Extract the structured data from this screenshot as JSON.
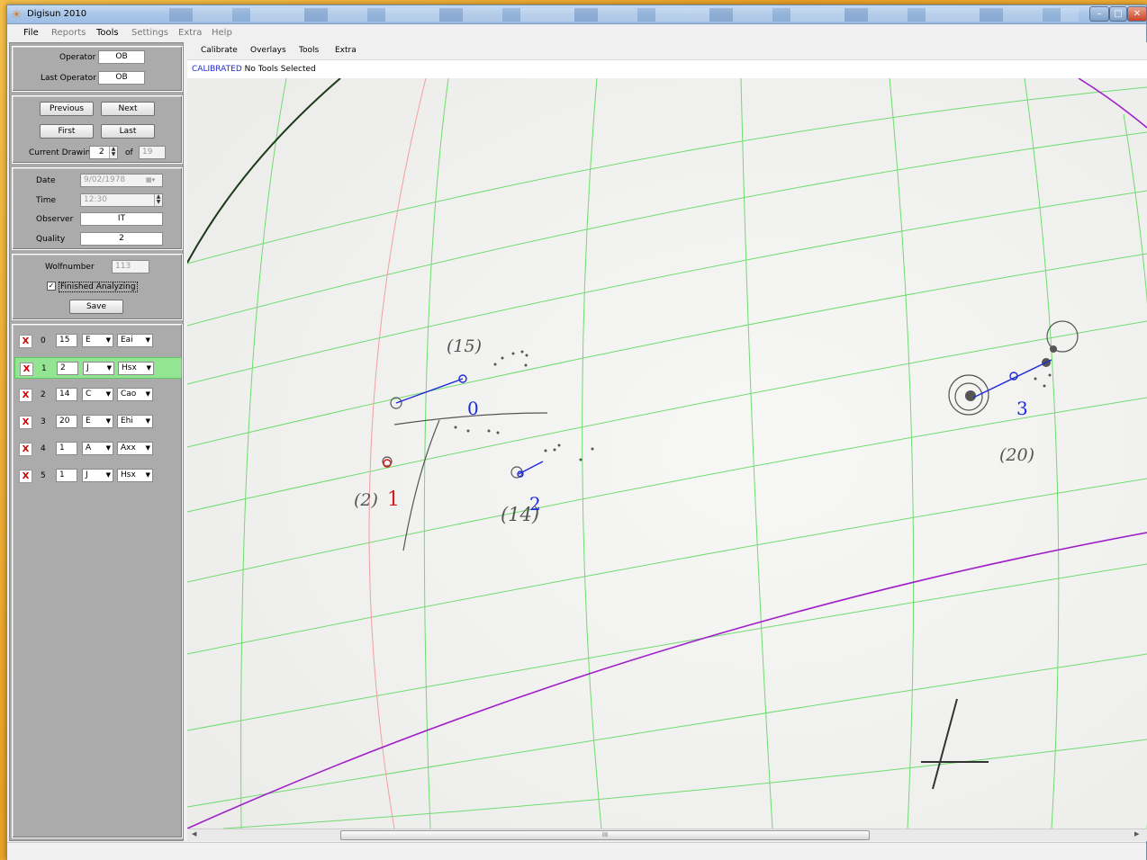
{
  "window": {
    "title": "Digisun 2010"
  },
  "menu": [
    {
      "label": "File",
      "dim": false
    },
    {
      "label": "Reports",
      "dim": true
    },
    {
      "label": "Tools",
      "dim": false
    },
    {
      "label": "Settings",
      "dim": true
    },
    {
      "label": "Extra",
      "dim": true
    },
    {
      "label": "Help",
      "dim": true
    }
  ],
  "operator": {
    "operator_label": "Operator",
    "operator_value": "OB",
    "last_label": "Last Operator",
    "last_value": "OB"
  },
  "nav": {
    "previous": "Previous",
    "next": "Next",
    "first": "First",
    "last": "Last",
    "current_label": "Current Drawing",
    "current_value": "2",
    "of_label": "of",
    "total": "19"
  },
  "info": {
    "date_label": "Date",
    "date_value": "9/02/1978",
    "time_label": "Time",
    "time_value": "12:30",
    "observer_label": "Observer",
    "observer_value": "IT",
    "quality_label": "Quality",
    "quality_value": "2"
  },
  "analysis": {
    "wolf_label": "Wolfnumber",
    "wolf_value": "113",
    "finished_label": "Finished Analyzing",
    "finished_checked": "✓",
    "save": "Save"
  },
  "groups": [
    {
      "id": "0",
      "count": "15",
      "type": "E",
      "class": "Eai",
      "selected": false
    },
    {
      "id": "1",
      "count": "2",
      "type": "J",
      "class": "Hsx",
      "selected": true
    },
    {
      "id": "2",
      "count": "14",
      "type": "C",
      "class": "Cao",
      "selected": false
    },
    {
      "id": "3",
      "count": "20",
      "type": "E",
      "class": "Ehi",
      "selected": false
    },
    {
      "id": "4",
      "count": "1",
      "type": "A",
      "class": "Axx",
      "selected": false
    },
    {
      "id": "5",
      "count": "1",
      "type": "J",
      "class": "Hsx",
      "selected": false
    }
  ],
  "delete_glyph": "X",
  "tools_menu": [
    "Calibrate",
    "Overlays",
    "Tools",
    "Extra"
  ],
  "status": {
    "calibrated": "CALIBRATED",
    "tools": "No Tools Selected"
  },
  "drawing": {
    "labels": [
      "(15)",
      "0",
      "(2)",
      "1",
      "(14)",
      "2",
      "3",
      "(20)"
    ],
    "colors": {
      "grid": "#6fdc6f",
      "limb": "#a020c8",
      "meridian": "#f0a0a0",
      "marker": "#1e2ad8",
      "ink": "#555555"
    }
  },
  "scrollbar": {
    "grip": "III"
  }
}
